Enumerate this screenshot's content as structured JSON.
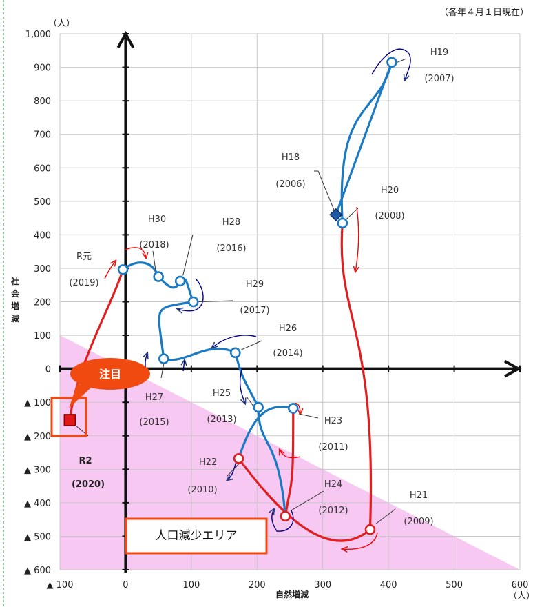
{
  "chart_data": {
    "type": "line",
    "note": "（各年４月１日現在）",
    "xlabel": "自然増減",
    "ylabel": "社会増減",
    "x_unit": "（人）",
    "y_unit": "（人）",
    "xlim": [
      -100,
      600
    ],
    "ylim": [
      -600,
      1000
    ],
    "x_ticks": [
      {
        "v": -100,
        "label": "▲ 100"
      },
      {
        "v": 0,
        "label": "0"
      },
      {
        "v": 100,
        "label": "100"
      },
      {
        "v": 200,
        "label": "200"
      },
      {
        "v": 300,
        "label": "300"
      },
      {
        "v": 400,
        "label": "400"
      },
      {
        "v": 500,
        "label": "500"
      },
      {
        "v": 600,
        "label": "600"
      }
    ],
    "y_ticks": [
      {
        "v": 1000,
        "label": "1,000"
      },
      {
        "v": 900,
        "label": "900"
      },
      {
        "v": 800,
        "label": "800"
      },
      {
        "v": 700,
        "label": "700"
      },
      {
        "v": 600,
        "label": "600"
      },
      {
        "v": 500,
        "label": "500"
      },
      {
        "v": 400,
        "label": "400"
      },
      {
        "v": 300,
        "label": "300"
      },
      {
        "v": 200,
        "label": "200"
      },
      {
        "v": 100,
        "label": "100"
      },
      {
        "v": 0,
        "label": "0"
      },
      {
        "v": -100,
        "label": "▲ 100"
      },
      {
        "v": -200,
        "label": "▲ 200"
      },
      {
        "v": -300,
        "label": "▲ 300"
      },
      {
        "v": -400,
        "label": "▲ 400"
      },
      {
        "v": -500,
        "label": "▲ 500"
      },
      {
        "v": -600,
        "label": "▲ 600"
      }
    ],
    "points": [
      {
        "era": "H18",
        "year": "(2006)",
        "x": 320,
        "y": 460,
        "marker": "diamond"
      },
      {
        "era": "H19",
        "year": "(2007)",
        "x": 405,
        "y": 915,
        "marker": "circle"
      },
      {
        "era": "H20",
        "year": "(2008)",
        "x": 330,
        "y": 435,
        "marker": "circle"
      },
      {
        "era": "H21",
        "year": "(2009)",
        "x": 372,
        "y": -480,
        "marker": "circle"
      },
      {
        "era": "H22",
        "year": "(2010)",
        "x": 172,
        "y": -268,
        "marker": "circle"
      },
      {
        "era": "H23",
        "year": "(2011)",
        "x": 255,
        "y": -118,
        "marker": "circle"
      },
      {
        "era": "H24",
        "year": "(2012)",
        "x": 243,
        "y": -440,
        "marker": "circle"
      },
      {
        "era": "H25",
        "year": "(2013)",
        "x": 202,
        "y": -115,
        "marker": "circle"
      },
      {
        "era": "H26",
        "year": "(2014)",
        "x": 167,
        "y": 48,
        "marker": "circle"
      },
      {
        "era": "H27",
        "year": "(2015)",
        "x": 58,
        "y": 30,
        "marker": "circle"
      },
      {
        "era": "H28",
        "year": "(2016)",
        "x": 83,
        "y": 262,
        "marker": "circle"
      },
      {
        "era": "H29",
        "year": "(2017)",
        "x": 103,
        "y": 200,
        "marker": "circle"
      },
      {
        "era": "H30",
        "year": "(2018)",
        "x": 50,
        "y": 275,
        "marker": "circle"
      },
      {
        "era": "R元",
        "year": "(2019)",
        "x": -4,
        "y": 296,
        "marker": "circle"
      },
      {
        "era": "R2",
        "year": "(2020)",
        "x": -85,
        "y": -153,
        "marker": "square"
      }
    ],
    "highlight_label": "注目",
    "area_label": "人口減少エリア",
    "colors": {
      "increase": "#1b7ac2",
      "decrease": "#e02020",
      "area": "#f7c8f2",
      "highlight": "#f04a10"
    }
  }
}
